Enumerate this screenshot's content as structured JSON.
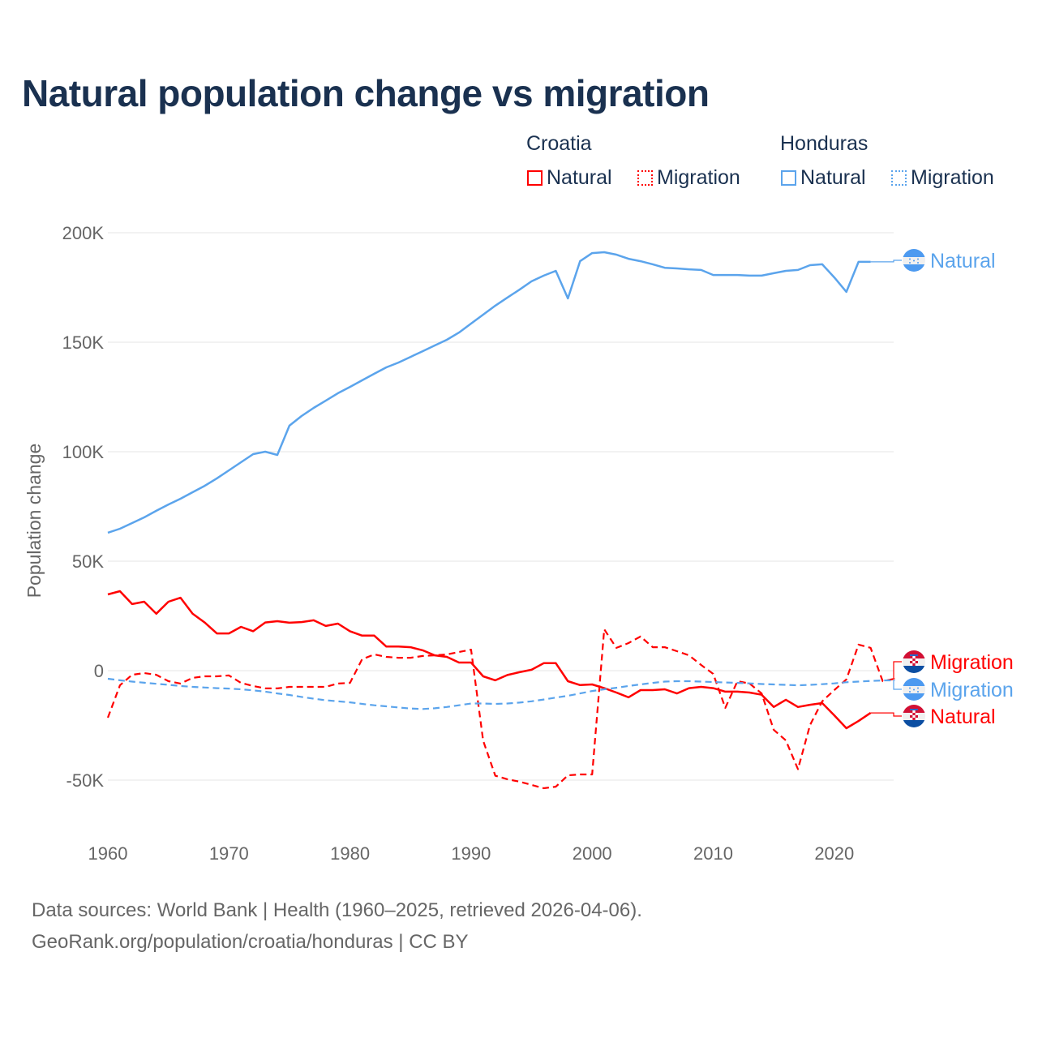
{
  "chart_data": {
    "type": "line",
    "title": "Natural population change vs migration",
    "ylabel": "Population change",
    "xlabel": "",
    "ylim": [
      -70000,
      200000
    ],
    "xlim": [
      1960,
      2025
    ],
    "y_ticks": [
      {
        "v": 200000,
        "label": "200K"
      },
      {
        "v": 150000,
        "label": "150K"
      },
      {
        "v": 100000,
        "label": "100K"
      },
      {
        "v": 50000,
        "label": "50K"
      },
      {
        "v": 0,
        "label": "0"
      },
      {
        "v": -50000,
        "label": "-50K"
      }
    ],
    "x_ticks": [
      {
        "v": 1960,
        "label": "1960"
      },
      {
        "v": 1970,
        "label": "1970"
      },
      {
        "v": 1980,
        "label": "1980"
      },
      {
        "v": 1990,
        "label": "1990"
      },
      {
        "v": 2000,
        "label": "2000"
      },
      {
        "v": 2010,
        "label": "2010"
      },
      {
        "v": 2020,
        "label": "2020"
      }
    ],
    "grid": true,
    "legend": {
      "placement": "top-right",
      "groups": [
        {
          "title": "Croatia",
          "items": [
            "Natural",
            "Migration"
          ]
        },
        {
          "title": "Honduras",
          "items": [
            "Natural",
            "Migration"
          ]
        }
      ]
    },
    "series": [
      {
        "name": "Croatia Natural",
        "country": "Croatia",
        "kind": "Natural",
        "color": "#ff0000",
        "dash": "solid",
        "start_year": 1960,
        "values_k": [
          34.8,
          36.3,
          30.4,
          31.5,
          26,
          31.5,
          33.3,
          26,
          22,
          17,
          17,
          20,
          18,
          22,
          22.6,
          21.9,
          22.2,
          23,
          20.4,
          21.5,
          18,
          16,
          16,
          11,
          11,
          10.7,
          9.3,
          7,
          6.3,
          3.7,
          3.7,
          -2.6,
          -4.4,
          -2,
          -0.7,
          0.4,
          3.4,
          3.4,
          -4.8,
          -6.6,
          -6.3,
          -8,
          -10,
          -12.2,
          -8.9,
          -8.9,
          -8.5,
          -10.4,
          -8,
          -7.4,
          -8,
          -9.6,
          -9.6,
          -10,
          -11,
          -16.6,
          -13.3,
          -16.6,
          -15.6,
          -14.8,
          -20.4,
          -26.3,
          -23,
          -19.3
        ]
      },
      {
        "name": "Croatia Migration",
        "country": "Croatia",
        "kind": "Migration",
        "color": "#ff0000",
        "dash": "dashed",
        "start_year": 1960,
        "values_k": [
          -21.5,
          -6.7,
          -1.9,
          -1.1,
          -1.9,
          -4.8,
          -5.9,
          -3.3,
          -2.6,
          -2.6,
          -2.2,
          -5.6,
          -7,
          -8.1,
          -8.1,
          -7.4,
          -7.4,
          -7.4,
          -7.4,
          -5.9,
          -5.6,
          5.2,
          7.4,
          6.3,
          5.9,
          5.9,
          6.7,
          7,
          7.4,
          8.5,
          9.6,
          -32,
          -48,
          -49.6,
          -50.7,
          -52.2,
          -53.7,
          -53,
          -47.8,
          -47.4,
          -47.4,
          18.9,
          10.4,
          12.6,
          15.6,
          10.7,
          10.7,
          8.9,
          7,
          2.6,
          -1.5,
          -17,
          -4.8,
          -5.9,
          -10.4,
          -27,
          -31.9,
          -45,
          -24.8,
          -14,
          -8.9,
          -4,
          11.9,
          10.4,
          -4.8,
          -3.7
        ]
      },
      {
        "name": "Honduras Natural",
        "country": "Honduras",
        "kind": "Natural",
        "color": "#5ba4ec",
        "dash": "solid",
        "start_year": 1960,
        "values_k": [
          63,
          64.8,
          67.4,
          70,
          73,
          75.9,
          78.5,
          81.5,
          84.4,
          87.8,
          91.5,
          95.2,
          98.9,
          100,
          98.5,
          111.9,
          116.3,
          120,
          123.3,
          126.7,
          129.6,
          132.6,
          135.6,
          138.5,
          140.7,
          143.3,
          145.9,
          148.5,
          151.1,
          154.4,
          158.5,
          162.6,
          166.7,
          170.4,
          174,
          177.8,
          180.4,
          182.6,
          170,
          187,
          190.7,
          191.1,
          190,
          188.1,
          187,
          185.6,
          184,
          183.7,
          183.3,
          183,
          180.7,
          180.7,
          180.7,
          180.4,
          180.4,
          181.5,
          182.6,
          183,
          185.2,
          185.6,
          179.6,
          173,
          186.7,
          186.7
        ]
      },
      {
        "name": "Honduras Migration",
        "country": "Honduras",
        "kind": "Migration",
        "color": "#5ba4ec",
        "dash": "dashed",
        "start_year": 1960,
        "values_k": [
          -3.7,
          -4.4,
          -5,
          -5.5,
          -6,
          -6.5,
          -7,
          -7.4,
          -7.7,
          -8,
          -8.2,
          -8.5,
          -9,
          -9.6,
          -10.4,
          -11.1,
          -12,
          -12.8,
          -13.5,
          -14,
          -14.5,
          -15.2,
          -15.8,
          -16.3,
          -16.8,
          -17.3,
          -17.5,
          -17.2,
          -16.6,
          -15.8,
          -15,
          -15,
          -15.2,
          -15,
          -14.6,
          -14,
          -13.2,
          -12.3,
          -11.5,
          -10.4,
          -9.3,
          -8.5,
          -7.8,
          -7,
          -6.3,
          -5.6,
          -5,
          -4.8,
          -4.8,
          -5,
          -5.2,
          -5.4,
          -5.6,
          -5.8,
          -6.1,
          -6.3,
          -6.5,
          -6.7,
          -6.5,
          -6.2,
          -5.8,
          -5.3,
          -5,
          -4.7,
          -4.5,
          -4.4
        ]
      }
    ],
    "end_labels": [
      "Natural",
      "Migration",
      "Migration",
      "Natural"
    ]
  },
  "footer": {
    "line1": "Data sources: World Bank | Health (1960–2025, retrieved 2026-04-06).",
    "line2": "GeoRank.org/population/croatia/honduras | CC BY"
  }
}
